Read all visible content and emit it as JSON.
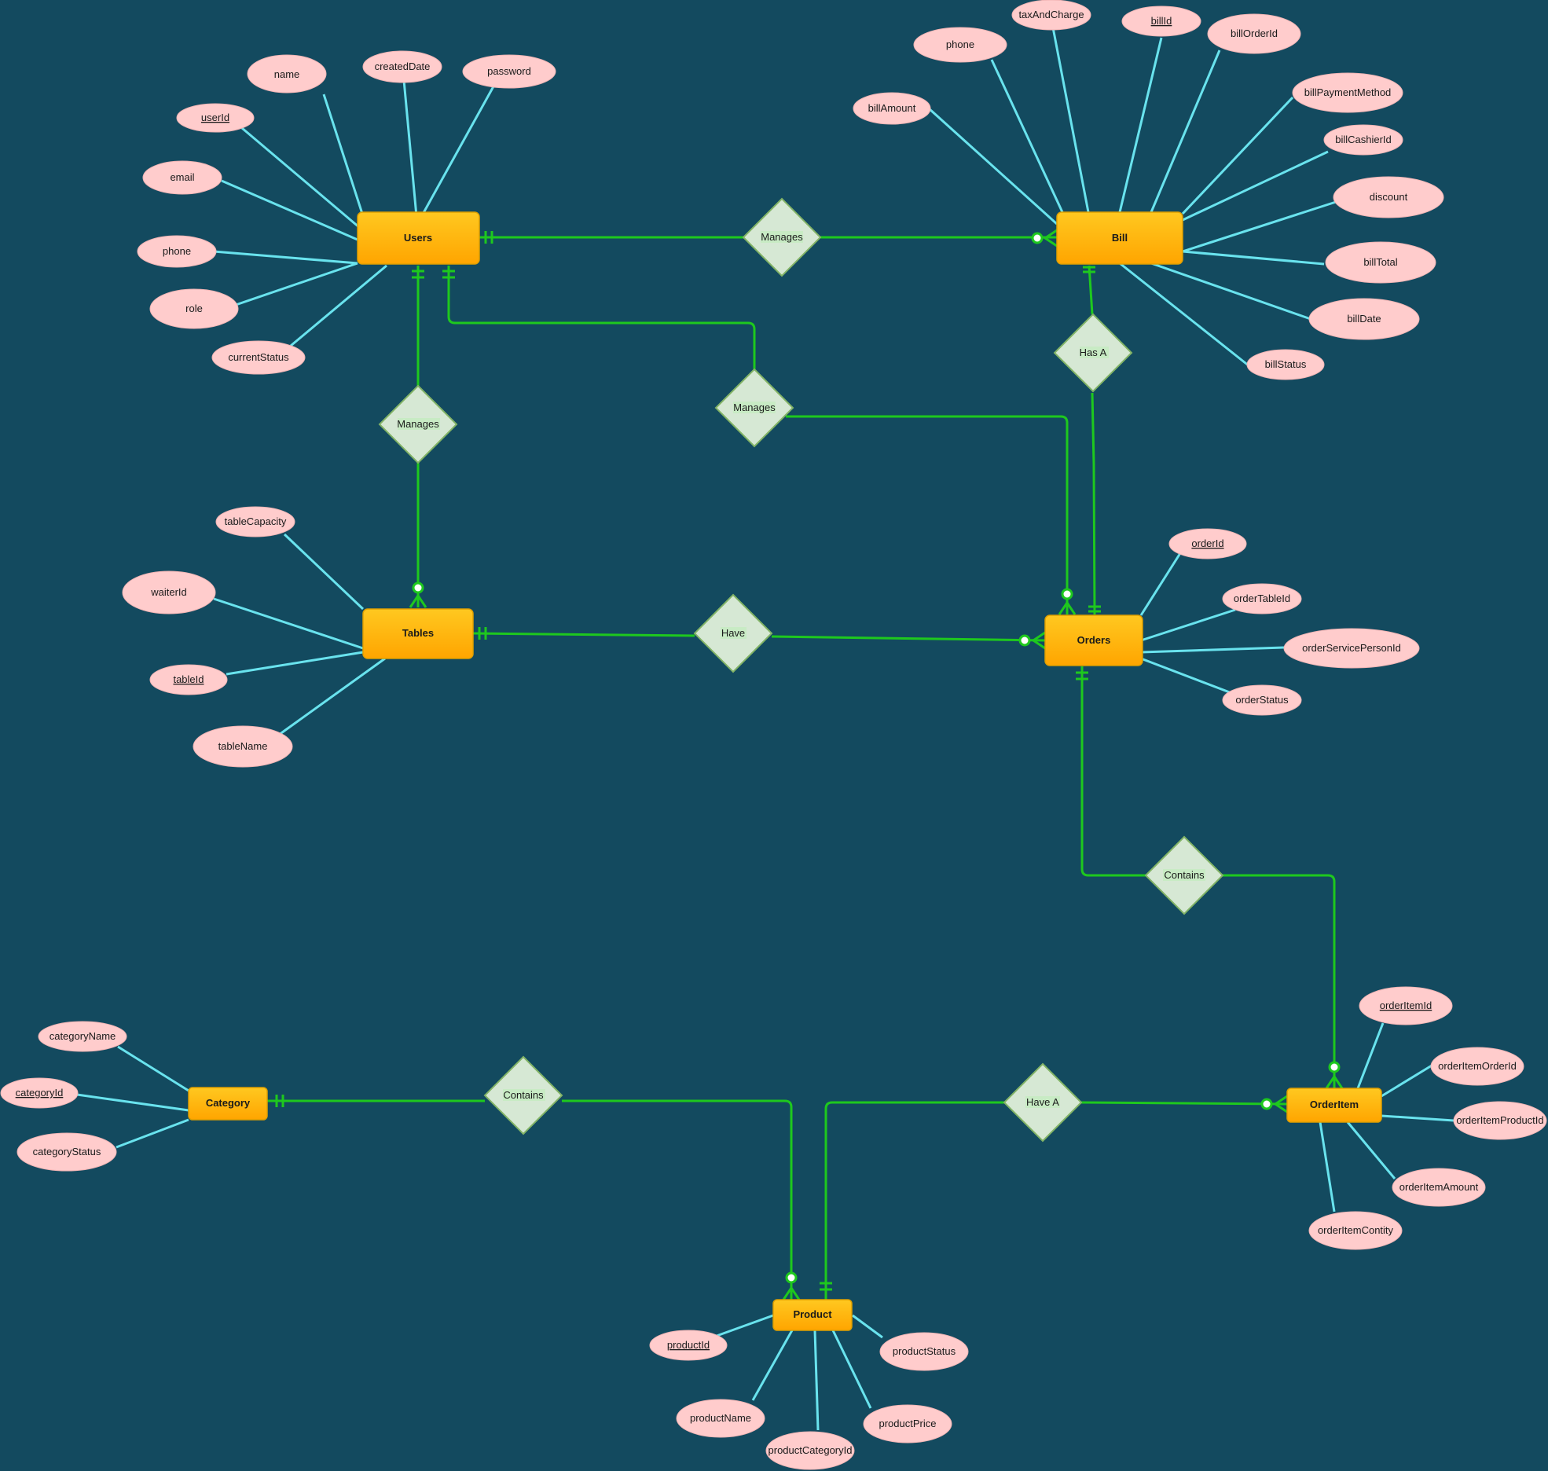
{
  "entities": {
    "users": "Users",
    "bill": "Bill",
    "tables": "Tables",
    "orders": "Orders",
    "category": "Category",
    "product": "Product",
    "orderitem": "OrderItem"
  },
  "relationships": {
    "users_bill": "Manages",
    "users_tables": "Manages",
    "users_orders": "Manages",
    "bill_orders": "Has A",
    "tables_orders": "Have",
    "orders_orderitem": "Contains",
    "category_product": "Contains",
    "product_orderitem": "Have A"
  },
  "attributes": {
    "users": {
      "name": "name",
      "createdDate": "createdDate",
      "password": "password",
      "userId": "userId",
      "email": "email",
      "phone": "phone",
      "role": "role",
      "currentStatus": "currentStatus"
    },
    "bill": {
      "taxAndCharge": "taxAndCharge",
      "billId": "billId",
      "phone": "phone",
      "billOrderId": "billOrderId",
      "billAmount": "billAmount",
      "billPaymentMethod": "billPaymentMethod",
      "billCashierId": "billCashierId",
      "discount": "discount",
      "billTotal": "billTotal",
      "billDate": "billDate",
      "billStatus": "billStatus"
    },
    "tables": {
      "tableCapacity": "tableCapacity",
      "waiterId": "waiterId",
      "tableId": "tableId",
      "tableName": "tableName"
    },
    "orders": {
      "orderId": "orderId",
      "orderTableId": "orderTableId",
      "orderServicePersonId": "orderServicePersonId",
      "orderStatus": "orderStatus"
    },
    "category": {
      "categoryName": "categoryName",
      "categoryId": "categoryId",
      "categoryStatus": "categoryStatus"
    },
    "product": {
      "productId": "productId",
      "productStatus": "productStatus",
      "productName": "productName",
      "productPrice": "productPrice",
      "productCategoryId": "productCategoryId"
    },
    "orderitem": {
      "orderItemId": "orderItemId",
      "orderItemOrderId": "orderItemOrderId",
      "orderItemProductId": "orderItemProductId",
      "orderItemAmount": "orderItemAmount",
      "orderItemContity": "orderItemContity"
    }
  },
  "colors": {
    "background": "#134A5F",
    "entity_fill_top": "#FFC820",
    "entity_fill_bottom": "#FFA500",
    "attribute_fill": "#FFCCCC",
    "attribute_line": "#69E3EE",
    "relationship_fill": "#D6E8D4",
    "relationship_line": "#1EC81E"
  }
}
